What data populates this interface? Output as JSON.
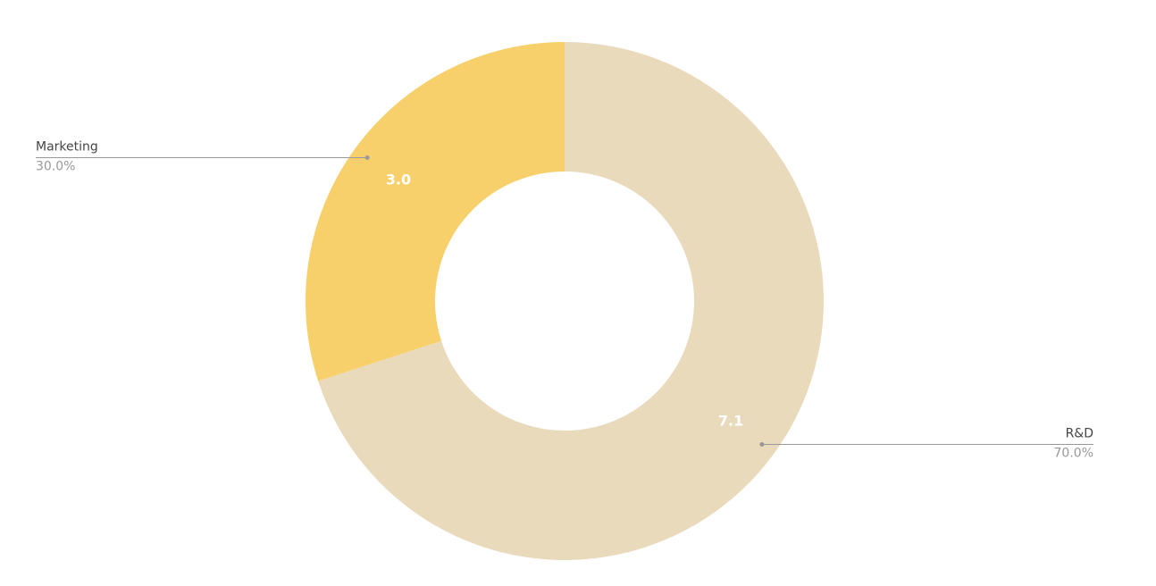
{
  "chart_data": {
    "type": "donut",
    "categories": [
      "Marketing",
      "R&D"
    ],
    "values": [
      3.0,
      7.1
    ],
    "value_labels": [
      "3.0",
      "7.1"
    ],
    "percents": [
      30.0,
      70.0
    ],
    "percent_labels": [
      "30.0%",
      "70.0%"
    ],
    "colors": [
      "#f7d06b",
      "#eadabc"
    ]
  }
}
